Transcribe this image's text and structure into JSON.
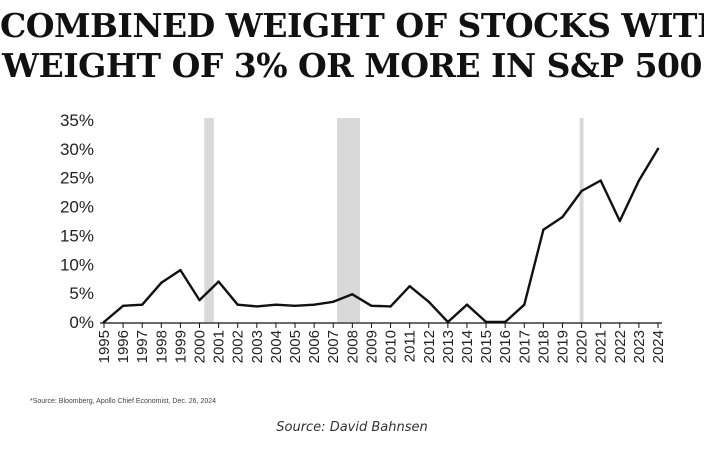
{
  "chart_data": {
    "type": "line",
    "title_lines": [
      "COMBINED WEIGHT OF STOCKS WITH",
      "WEIGHT OF 3% OR MORE IN S&P 500"
    ],
    "x": [
      "1995",
      "1996",
      "1997",
      "1998",
      "1999",
      "2000",
      "2001",
      "2002",
      "2003",
      "2004",
      "2005",
      "2006",
      "2007",
      "2008",
      "2009",
      "2010",
      "2011",
      "2012",
      "2013",
      "2014",
      "2015",
      "2016",
      "2017",
      "2018",
      "2019",
      "2020",
      "2021",
      "2022",
      "2023",
      "2024"
    ],
    "values": [
      0,
      2.8,
      3.0,
      6.8,
      9.0,
      3.8,
      7.0,
      3.0,
      2.7,
      3.0,
      2.8,
      3.0,
      3.5,
      4.8,
      2.8,
      2.7,
      6.2,
      3.5,
      0,
      3.0,
      0,
      0,
      3.0,
      16.0,
      18.2,
      22.7,
      24.5,
      17.5,
      24.5,
      30.0
    ],
    "ylim": [
      0,
      35
    ],
    "yticks": [
      0,
      5,
      10,
      15,
      20,
      25,
      30,
      35
    ],
    "ytick_labels": [
      "0%",
      "5%",
      "10%",
      "15%",
      "20%",
      "25%",
      "30%",
      "35%"
    ],
    "shaded_ranges": [
      [
        2000.25,
        2000.75
      ],
      [
        2007.2,
        2008.4
      ],
      [
        2019.9,
        2020.1
      ]
    ],
    "line_color": "#111111",
    "shade_color": "#d9d9d9"
  },
  "source_note": "*Source: Bloomberg, Apollo Chief Economist, Dec. 26, 2024",
  "caption": "Source: David Bahnsen"
}
